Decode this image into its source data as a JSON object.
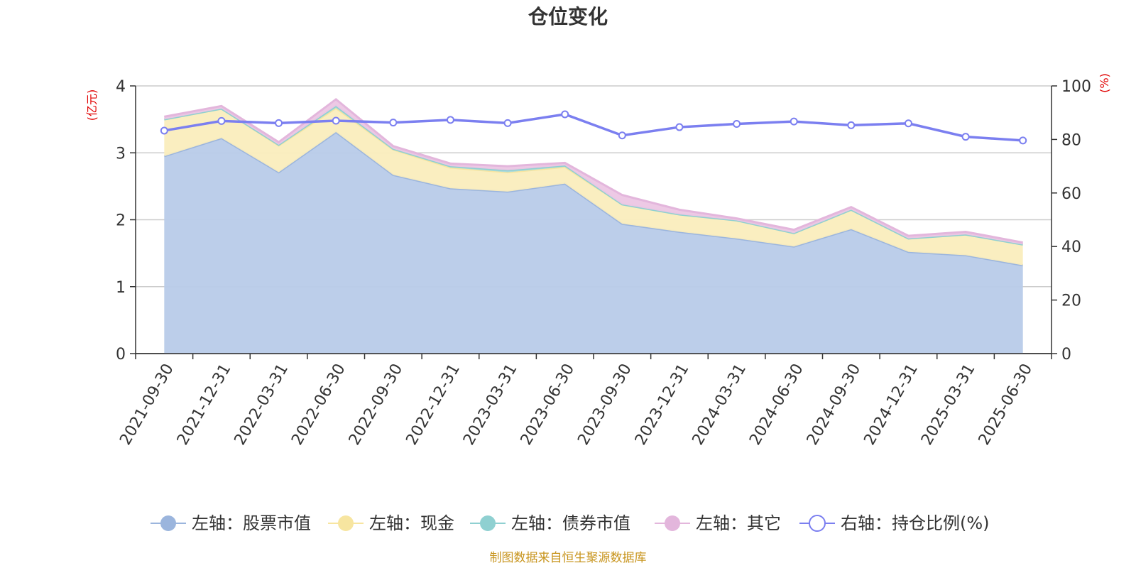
{
  "chart_data": {
    "type": "area",
    "title": "仓位变化",
    "left_axis_unit": "(亿元)",
    "right_axis_unit": "(%)",
    "categories": [
      "2021-09-30",
      "2021-12-31",
      "2022-03-31",
      "2022-06-30",
      "2022-09-30",
      "2022-12-31",
      "2023-03-31",
      "2023-06-30",
      "2023-09-30",
      "2023-12-31",
      "2024-03-31",
      "2024-06-30",
      "2024-09-30",
      "2024-12-31",
      "2025-03-31",
      "2025-06-30"
    ],
    "ylim_left": [
      0,
      4
    ],
    "yticks_left": [
      "0",
      "1",
      "2",
      "3",
      "4"
    ],
    "ylim_right": [
      0,
      100
    ],
    "yticks_right": [
      "0",
      "20",
      "40",
      "60",
      "80",
      "100"
    ],
    "stacked": true,
    "series": [
      {
        "name": "左轴：股票市值",
        "axis": "left",
        "color": "#9bb5dd",
        "fill": "#b8cbe9",
        "values": [
          2.95,
          3.22,
          2.71,
          3.31,
          2.67,
          2.47,
          2.42,
          2.54,
          1.94,
          1.82,
          1.72,
          1.6,
          1.86,
          1.52,
          1.47,
          1.32
        ]
      },
      {
        "name": "左轴：现金",
        "axis": "left",
        "color": "#f7e5a0",
        "fill": "#faedbd",
        "values": [
          0.55,
          0.44,
          0.4,
          0.36,
          0.38,
          0.31,
          0.29,
          0.25,
          0.29,
          0.26,
          0.27,
          0.2,
          0.29,
          0.2,
          0.31,
          0.31
        ]
      },
      {
        "name": "左轴：债券市值",
        "axis": "left",
        "color": "#8fd0d1",
        "fill": "#a8dadb",
        "values": [
          0.0,
          0.0,
          0.01,
          0.03,
          0.01,
          0.02,
          0.03,
          0.02,
          0.0,
          0.0,
          0.0,
          0.0,
          0.0,
          0.0,
          0.0,
          0.0
        ]
      },
      {
        "name": "左轴：其它",
        "axis": "left",
        "color": "#e3b6dc",
        "fill": "#ecc6e4",
        "values": [
          0.04,
          0.04,
          0.04,
          0.1,
          0.04,
          0.04,
          0.06,
          0.04,
          0.14,
          0.07,
          0.03,
          0.05,
          0.04,
          0.04,
          0.04,
          0.03
        ]
      },
      {
        "name": "右轴：持仓比例(%)",
        "axis": "right",
        "type": "line",
        "color": "#7b7ff0",
        "values": [
          83.3,
          86.9,
          86.1,
          87.0,
          86.3,
          87.3,
          86.1,
          89.4,
          81.5,
          84.6,
          85.8,
          86.7,
          85.3,
          86.0,
          81.0,
          79.6
        ]
      }
    ],
    "grid": true,
    "legend": "bottom-center"
  },
  "footer": {
    "source": "制图数据来自恒生聚源数据库"
  }
}
